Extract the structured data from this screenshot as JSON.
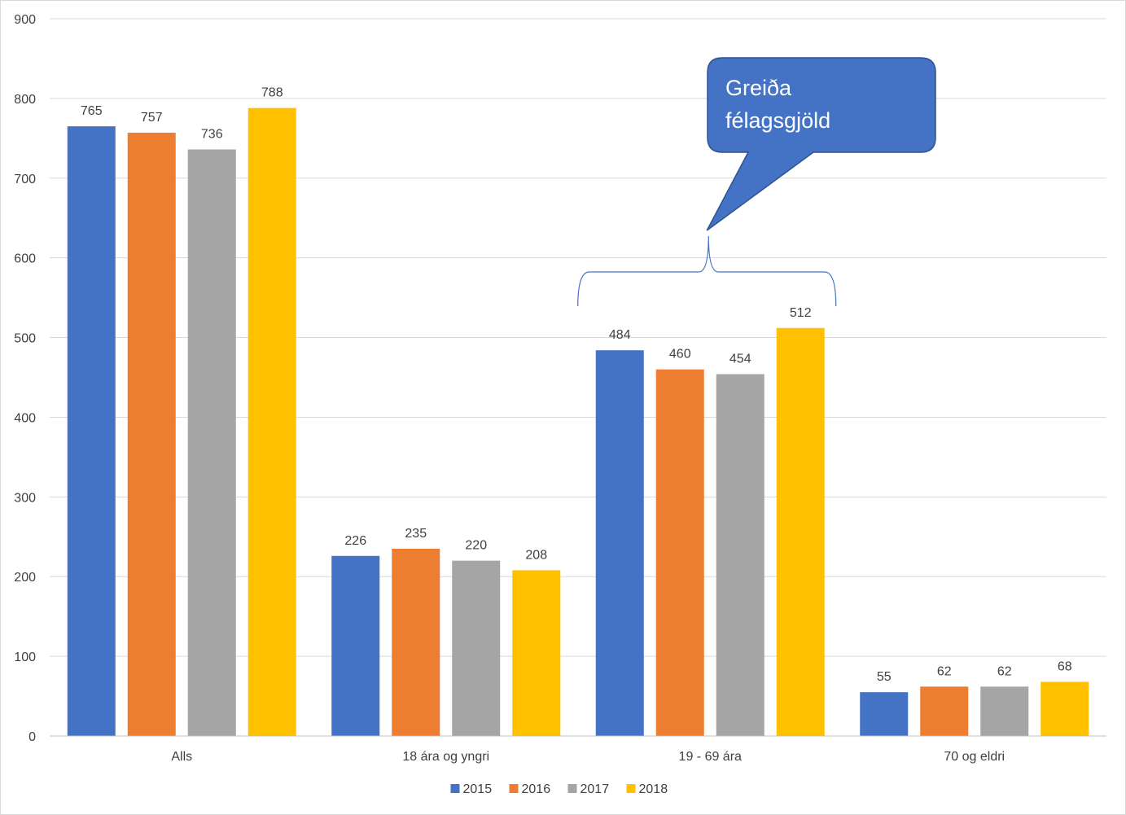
{
  "chart_data": {
    "type": "bar",
    "categories": [
      "Alls",
      "18 ára og yngri",
      "19 - 69 ára",
      "70 og eldri"
    ],
    "series": [
      {
        "name": "2015",
        "color": "#4472C4",
        "values": [
          765,
          226,
          484,
          55
        ]
      },
      {
        "name": "2016",
        "color": "#ED7D31",
        "values": [
          757,
          235,
          460,
          62
        ]
      },
      {
        "name": "2017",
        "color": "#A5A5A5",
        "values": [
          736,
          220,
          454,
          62
        ]
      },
      {
        "name": "2018",
        "color": "#FFC000",
        "values": [
          788,
          208,
          512,
          68
        ]
      }
    ],
    "ylim": [
      0,
      900
    ],
    "yticks": [
      0,
      100,
      200,
      300,
      400,
      500,
      600,
      700,
      800,
      900
    ],
    "grid": true,
    "legend_position": "bottom",
    "annotation": {
      "lines": [
        "Greiða",
        "félagsgjöld"
      ],
      "target_category": "19 - 69 ára",
      "fill": "#4472C4",
      "bracket_color": "#4472C4"
    }
  }
}
